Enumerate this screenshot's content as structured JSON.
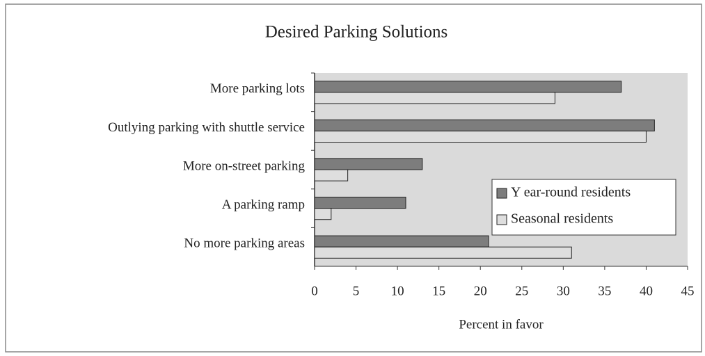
{
  "chart_data": {
    "type": "bar",
    "orientation": "horizontal",
    "title": "Desired Parking Solutions",
    "x_label": "Percent in favor",
    "categories": [
      "More parking lots",
      "Outlying parking with shuttle service",
      "More on-street parking",
      "A parking ramp",
      "No more parking areas"
    ],
    "series": [
      {
        "name": "Y ear-round residents",
        "color": "#7d7d7d",
        "values": [
          37,
          41,
          13,
          11,
          21
        ]
      },
      {
        "name": "Seasonal residents",
        "color": "#dedede",
        "values": [
          29,
          40,
          4,
          2,
          31
        ]
      }
    ],
    "xlim": [
      0,
      45
    ],
    "xticks": [
      0,
      5,
      10,
      15,
      20,
      25,
      30,
      35,
      40,
      45
    ],
    "grid": false,
    "legend": "right"
  }
}
